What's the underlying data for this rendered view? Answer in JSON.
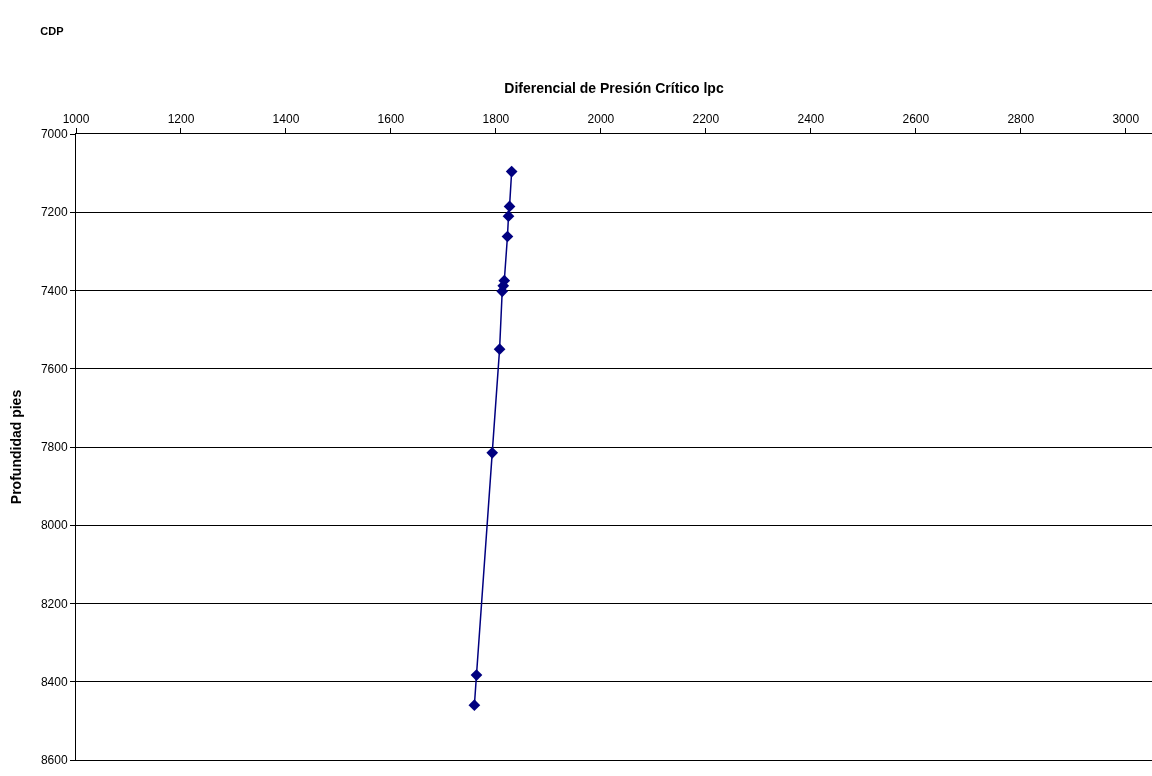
{
  "chart_data": {
    "type": "line",
    "title": "CDP",
    "xlabel": "Diferencial de Presión Crítico lpc",
    "ylabel": "Profundidad pies",
    "x": [
      1830,
      1826,
      1824,
      1822,
      1816,
      1814,
      1812,
      1807,
      1793,
      1763,
      1759
    ],
    "series": [
      {
        "color": "#000080",
        "values": [
          7096,
          7185,
          7210,
          7262,
          7375,
          7388,
          7402,
          7550,
          7815,
          8383,
          8460
        ]
      }
    ],
    "xlim": [
      1000,
      3050
    ],
    "xticks": [
      1000,
      1200,
      1400,
      1600,
      1800,
      2000,
      2200,
      2400,
      2600,
      2800,
      3000
    ],
    "ylim": [
      8600,
      7000
    ],
    "yticks": [
      7000,
      7200,
      7400,
      7600,
      7800,
      8000,
      8200,
      8400,
      8600
    ],
    "grid": "y",
    "marker": "diamond",
    "line_style": "solid"
  }
}
